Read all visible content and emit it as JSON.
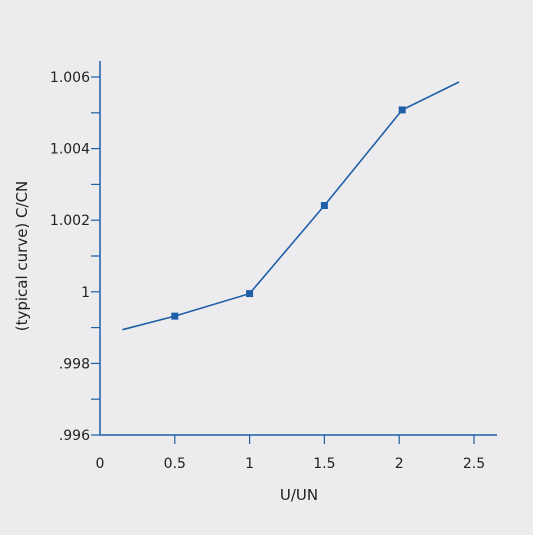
{
  "chart_data": {
    "type": "line",
    "title": "",
    "xlabel": "U/UN",
    "ylabel": "(typical curve) C/CN",
    "xlim": [
      0,
      2.6
    ],
    "ylim": [
      0.996,
      1.0066
    ],
    "x_ticks": [
      {
        "value": 0,
        "label": "0"
      },
      {
        "value": 0.5,
        "label": "0.5"
      },
      {
        "value": 1,
        "label": "1"
      },
      {
        "value": 1.5,
        "label": "1.5"
      },
      {
        "value": 2,
        "label": "2"
      },
      {
        "value": 2.5,
        "label": "2.5"
      }
    ],
    "y_ticks": [
      {
        "value": 0.996,
        "label": ".996"
      },
      {
        "value": 0.998,
        "label": ".998"
      },
      {
        "value": 1.0,
        "label": "1"
      },
      {
        "value": 1.002,
        "label": "1.002"
      },
      {
        "value": 1.004,
        "label": "1.004"
      },
      {
        "value": 1.006,
        "label": "1.006"
      }
    ],
    "y_minor_ticks": [
      0.997,
      0.999,
      1.001,
      1.003,
      1.005
    ],
    "grid": false,
    "series": [
      {
        "color": "#1f5fa8",
        "x": [
          0.15,
          0.5,
          1.0,
          1.5,
          2.02,
          2.4
        ],
        "y": [
          0.99894,
          0.99932,
          0.99995,
          1.00241,
          1.00508,
          1.00586
        ],
        "markers": [
          false,
          true,
          true,
          true,
          true,
          false
        ]
      }
    ],
    "axis_color": "#1f5fa8",
    "background": "#ececee"
  }
}
